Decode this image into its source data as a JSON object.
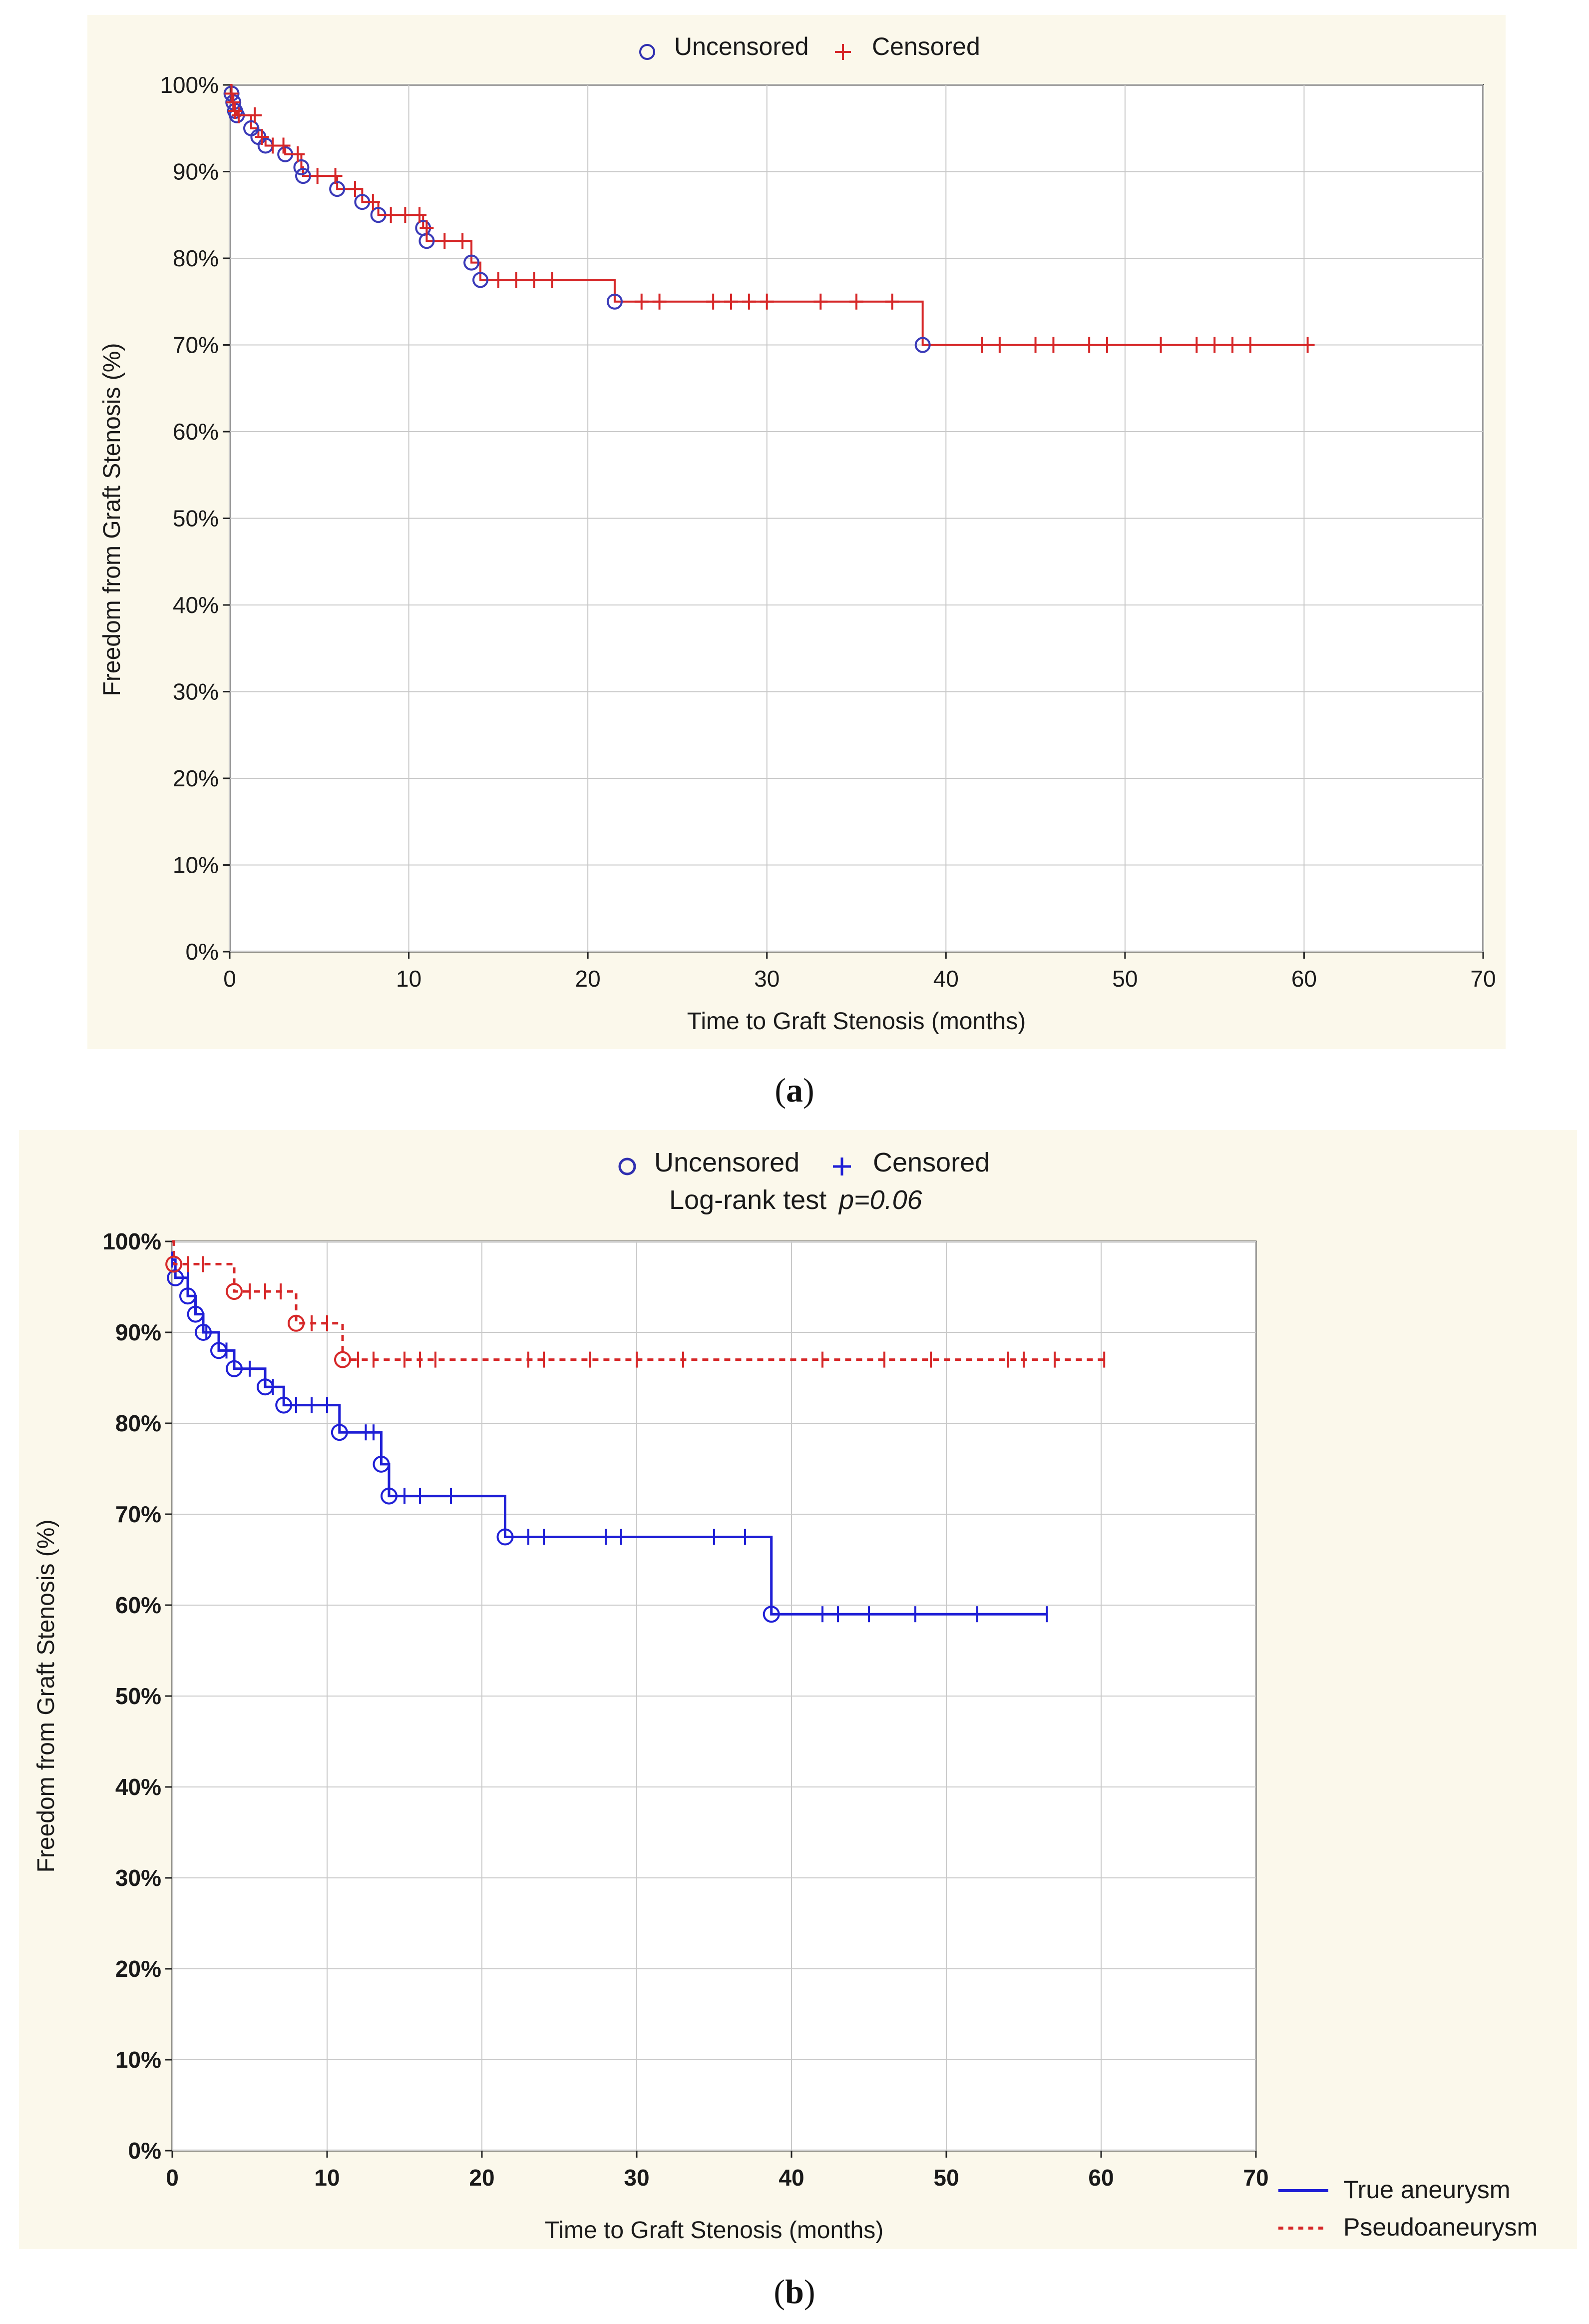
{
  "chart_data": [
    {
      "type": "line",
      "caption_letter": "a",
      "xlabel": "Time to Graft Stenosis (months)",
      "ylabel": "Freedom from Graft Stenosis (%)",
      "xlim": [
        0,
        70
      ],
      "ylim": [
        0,
        100
      ],
      "x_ticks": [
        "0",
        "10",
        "20",
        "30",
        "40",
        "50",
        "60",
        "70"
      ],
      "y_ticks": [
        "0%",
        "10%",
        "20%",
        "30%",
        "40%",
        "50%",
        "60%",
        "70%",
        "80%",
        "90%",
        "100%"
      ],
      "grid": true,
      "legend": {
        "placement": "top-center",
        "uncensored": "Uncensored",
        "censored": "Censored"
      },
      "series": [
        {
          "color": "#d62728",
          "line_style": "solid",
          "steps": [
            [
              0,
              100
            ],
            [
              0.1,
              99
            ],
            [
              0.2,
              98
            ],
            [
              0.3,
              97
            ],
            [
              0.4,
              96.5
            ],
            [
              1.2,
              95
            ],
            [
              1.6,
              94
            ],
            [
              2.0,
              93
            ],
            [
              3.1,
              92
            ],
            [
              4.0,
              90.5
            ],
            [
              4.1,
              89.5
            ],
            [
              6.0,
              88
            ],
            [
              7.4,
              86.5
            ],
            [
              8.3,
              85
            ],
            [
              10.8,
              83.5
            ],
            [
              11.0,
              82
            ],
            [
              13.5,
              79.5
            ],
            [
              14.0,
              77.5
            ],
            [
              21.5,
              75
            ],
            [
              38.7,
              70
            ],
            [
              60.2,
              70
            ]
          ],
          "uncensored": [
            [
              0.1,
              99
            ],
            [
              0.2,
              98
            ],
            [
              0.3,
              97
            ],
            [
              0.4,
              96.5
            ],
            [
              1.2,
              95
            ],
            [
              1.6,
              94
            ],
            [
              2.0,
              93
            ],
            [
              3.1,
              92
            ],
            [
              4.0,
              90.5
            ],
            [
              4.1,
              89.5
            ],
            [
              6.0,
              88
            ],
            [
              7.4,
              86.5
            ],
            [
              8.3,
              85
            ],
            [
              10.8,
              83.5
            ],
            [
              11.0,
              82
            ],
            [
              13.5,
              79.5
            ],
            [
              14.0,
              77.5
            ],
            [
              21.5,
              75
            ],
            [
              38.7,
              70
            ]
          ],
          "censored": [
            [
              0.1,
              99
            ],
            [
              0.2,
              98
            ],
            [
              0.3,
              97
            ],
            [
              0.5,
              96.5
            ],
            [
              1.4,
              96.5
            ],
            [
              1.8,
              94
            ],
            [
              2.4,
              93
            ],
            [
              3.0,
              93
            ],
            [
              3.8,
              92
            ],
            [
              4.9,
              89.5
            ],
            [
              5.9,
              89.5
            ],
            [
              7.0,
              88
            ],
            [
              8.0,
              86.5
            ],
            [
              9.0,
              85
            ],
            [
              9.8,
              85
            ],
            [
              10.6,
              85
            ],
            [
              11.0,
              83.5
            ],
            [
              12.0,
              82
            ],
            [
              13.0,
              82
            ],
            [
              15.0,
              77.5
            ],
            [
              16.0,
              77.5
            ],
            [
              17.0,
              77.5
            ],
            [
              18.0,
              77.5
            ],
            [
              23.0,
              75
            ],
            [
              24.0,
              75
            ],
            [
              27.0,
              75
            ],
            [
              28.0,
              75
            ],
            [
              29.0,
              75
            ],
            [
              30.0,
              75
            ],
            [
              33.0,
              75
            ],
            [
              35.0,
              75
            ],
            [
              37.0,
              75
            ],
            [
              42.0,
              70
            ],
            [
              43.0,
              70
            ],
            [
              45.0,
              70
            ],
            [
              46.0,
              70
            ],
            [
              48.0,
              70
            ],
            [
              49.0,
              70
            ],
            [
              52.0,
              70
            ],
            [
              54.0,
              70
            ],
            [
              55.0,
              70
            ],
            [
              56.0,
              70
            ],
            [
              57.0,
              70
            ],
            [
              60.2,
              70
            ]
          ]
        }
      ]
    },
    {
      "type": "line",
      "caption_letter": "b",
      "xlabel": "Time to Graft Stenosis (months)",
      "ylabel": "Freedom from Graft Stenosis (%)",
      "xlim": [
        0,
        70
      ],
      "ylim": [
        0,
        100
      ],
      "x_ticks": [
        "0",
        "10",
        "20",
        "30",
        "40",
        "50",
        "60",
        "70"
      ],
      "y_ticks": [
        "0%",
        "10%",
        "20%",
        "30%",
        "40%",
        "50%",
        "60%",
        "70%",
        "80%",
        "90%",
        "100%"
      ],
      "grid": true,
      "legend": {
        "placement": "top-center",
        "uncensored": "Uncensored",
        "censored": "Censored",
        "test_label": "Log-rank test",
        "p_value": "p=0.06"
      },
      "series": [
        {
          "name": "True aneurysm",
          "color": "#1f1fd6",
          "line_style": "solid",
          "steps": [
            [
              0,
              98
            ],
            [
              0.2,
              96
            ],
            [
              1.0,
              94
            ],
            [
              1.5,
              92
            ],
            [
              2.0,
              90
            ],
            [
              3.0,
              88
            ],
            [
              4.0,
              86
            ],
            [
              6.0,
              84
            ],
            [
              7.2,
              82
            ],
            [
              10.8,
              79
            ],
            [
              13.5,
              75.5
            ],
            [
              14.0,
              72
            ],
            [
              21.5,
              67.5
            ],
            [
              38.7,
              59
            ],
            [
              56.5,
              59
            ]
          ],
          "uncensored": [
            [
              0.2,
              96
            ],
            [
              1.0,
              94
            ],
            [
              1.5,
              92
            ],
            [
              2.0,
              90
            ],
            [
              3.0,
              88
            ],
            [
              4.0,
              86
            ],
            [
              6.0,
              84
            ],
            [
              7.2,
              82
            ],
            [
              10.8,
              79
            ],
            [
              13.5,
              75.5
            ],
            [
              14.0,
              72
            ],
            [
              21.5,
              67.5
            ],
            [
              38.7,
              59
            ]
          ],
          "censored": [
            [
              0,
              98
            ],
            [
              1.0,
              96
            ],
            [
              2.2,
              90
            ],
            [
              3.5,
              88
            ],
            [
              5.0,
              86
            ],
            [
              6.5,
              84
            ],
            [
              8.0,
              82
            ],
            [
              9.0,
              82
            ],
            [
              10.0,
              82
            ],
            [
              12.5,
              79
            ],
            [
              13.0,
              79
            ],
            [
              15.0,
              72
            ],
            [
              16.0,
              72
            ],
            [
              18.0,
              72
            ],
            [
              23.0,
              67.5
            ],
            [
              24.0,
              67.5
            ],
            [
              28.0,
              67.5
            ],
            [
              29.0,
              67.5
            ],
            [
              35.0,
              67.5
            ],
            [
              37.0,
              67.5
            ],
            [
              42.0,
              59
            ],
            [
              43.0,
              59
            ],
            [
              45.0,
              59
            ],
            [
              48.0,
              59
            ],
            [
              52.0,
              59
            ],
            [
              56.5,
              59
            ]
          ]
        },
        {
          "name": "Pseudoaneurysm",
          "color": "#d62728",
          "line_style": "dashed",
          "steps": [
            [
              0,
              100
            ],
            [
              0.1,
              97.5
            ],
            [
              4.0,
              94.5
            ],
            [
              8.0,
              91
            ],
            [
              11.0,
              87
            ],
            [
              60.2,
              87
            ]
          ],
          "uncensored": [
            [
              0.1,
              97.5
            ],
            [
              4.0,
              94.5
            ],
            [
              8.0,
              91
            ],
            [
              11.0,
              87
            ]
          ],
          "censored": [
            [
              1.0,
              97.5
            ],
            [
              2.0,
              97.5
            ],
            [
              5.0,
              94.5
            ],
            [
              6.0,
              94.5
            ],
            [
              7.0,
              94.5
            ],
            [
              9.0,
              91
            ],
            [
              10.0,
              91
            ],
            [
              12.0,
              87
            ],
            [
              13.0,
              87
            ],
            [
              15.0,
              87
            ],
            [
              16.0,
              87
            ],
            [
              17.0,
              87
            ],
            [
              23.0,
              87
            ],
            [
              24.0,
              87
            ],
            [
              27.0,
              87
            ],
            [
              30.0,
              87
            ],
            [
              33.0,
              87
            ],
            [
              42.0,
              87
            ],
            [
              46.0,
              87
            ],
            [
              49.0,
              87
            ],
            [
              54.0,
              87
            ],
            [
              55.0,
              87
            ],
            [
              57.0,
              87
            ],
            [
              60.2,
              87
            ]
          ]
        }
      ]
    }
  ]
}
